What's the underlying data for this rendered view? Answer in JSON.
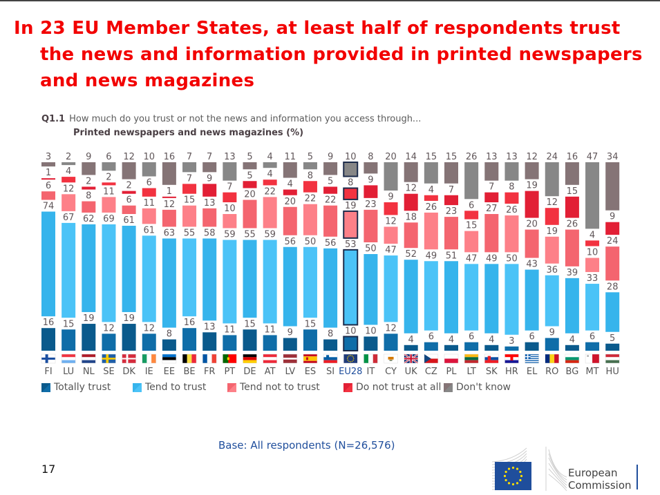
{
  "headline": {
    "line1": "In 23 EU Member States, at least half of respondents trust",
    "line2": "the news and information provided in printed newspapers",
    "line3": "and news magazines"
  },
  "question": {
    "code": "Q1.1",
    "text": "How much do you trust or not the news and information you access through...",
    "subtitle": "Printed newspapers and news magazines (%)"
  },
  "chart_data": {
    "type": "bar",
    "title": "Printed newspapers and news magazines (%)",
    "xlabel": "",
    "ylabel": "%",
    "categories": [
      "FI",
      "LU",
      "NL",
      "SE",
      "DK",
      "IE",
      "EE",
      "BE",
      "FR",
      "PT",
      "DE",
      "AT",
      "LV",
      "ES",
      "SI",
      "EU28",
      "IT",
      "CY",
      "UK",
      "CZ",
      "PL",
      "LT",
      "SK",
      "HR",
      "EL",
      "RO",
      "BG",
      "MT",
      "HU"
    ],
    "highlight_category": "EU28",
    "series": [
      {
        "name": "Totally trust",
        "color": "#0f6da8",
        "color_alt": "#0a5a8c",
        "values": [
          16,
          15,
          19,
          12,
          19,
          12,
          8,
          16,
          13,
          11,
          15,
          11,
          9,
          15,
          8,
          10,
          10,
          12,
          4,
          6,
          4,
          6,
          4,
          3,
          6,
          9,
          4,
          6,
          5
        ]
      },
      {
        "name": "Tend to trust",
        "color": "#4bc3f7",
        "color_alt": "#36b4ec",
        "values": [
          74,
          67,
          62,
          69,
          61,
          61,
          63,
          55,
          58,
          59,
          55,
          59,
          56,
          50,
          56,
          53,
          50,
          47,
          52,
          49,
          51,
          47,
          49,
          50,
          43,
          36,
          39,
          33,
          28
        ]
      },
      {
        "name": "Tend not to trust",
        "color": "#fd8088",
        "color_alt": "#f4656f",
        "values": [
          6,
          12,
          8,
          11,
          6,
          11,
          12,
          15,
          13,
          10,
          20,
          22,
          20,
          22,
          22,
          19,
          23,
          12,
          18,
          26,
          23,
          15,
          27,
          26,
          20,
          19,
          26,
          10,
          24
        ]
      },
      {
        "name": "Do not trust at all",
        "color": "#f23240",
        "color_alt": "#e21f35",
        "values": [
          1,
          4,
          2,
          2,
          2,
          6,
          1,
          7,
          9,
          7,
          5,
          4,
          4,
          8,
          5,
          8,
          9,
          9,
          12,
          4,
          7,
          6,
          7,
          8,
          19,
          12,
          15,
          4,
          9
        ]
      },
      {
        "name": "Don't know",
        "color": "#878787",
        "color_alt": "#857476",
        "values": [
          3,
          2,
          9,
          6,
          12,
          10,
          16,
          7,
          7,
          13,
          5,
          4,
          11,
          5,
          9,
          10,
          8,
          20,
          14,
          15,
          15,
          26,
          13,
          13,
          12,
          24,
          16,
          47,
          34
        ]
      }
    ],
    "legend_position": "bottom",
    "grid": false
  },
  "flags": {
    "FI": "finland-flag",
    "LU": "luxembourg-flag",
    "NL": "netherlands-flag",
    "SE": "sweden-flag",
    "DK": "denmark-flag",
    "IE": "ireland-flag",
    "EE": "estonia-flag",
    "BE": "belgium-flag",
    "FR": "france-flag",
    "PT": "portugal-flag",
    "DE": "germany-flag",
    "AT": "austria-flag",
    "LV": "latvia-flag",
    "ES": "spain-flag",
    "SI": "slovenia-flag",
    "EU28": "eu-flag",
    "IT": "italy-flag",
    "CY": "cyprus-flag",
    "UK": "uk-flag",
    "CZ": "czechia-flag",
    "PL": "poland-flag",
    "LT": "lithuania-flag",
    "SK": "slovakia-flag",
    "HR": "croatia-flag",
    "EL": "greece-flag",
    "RO": "romania-flag",
    "BG": "bulgaria-flag",
    "MT": "malta-flag",
    "HU": "hungary-flag"
  },
  "legend": [
    "Totally trust",
    "Tend to trust",
    "Tend not to trust",
    "Do not trust at all",
    "Don't know"
  ],
  "footer": {
    "base": "Base: All respondents (N=26,576)",
    "page_number": "17",
    "logo_line1": "European",
    "logo_line2": "Commission"
  }
}
